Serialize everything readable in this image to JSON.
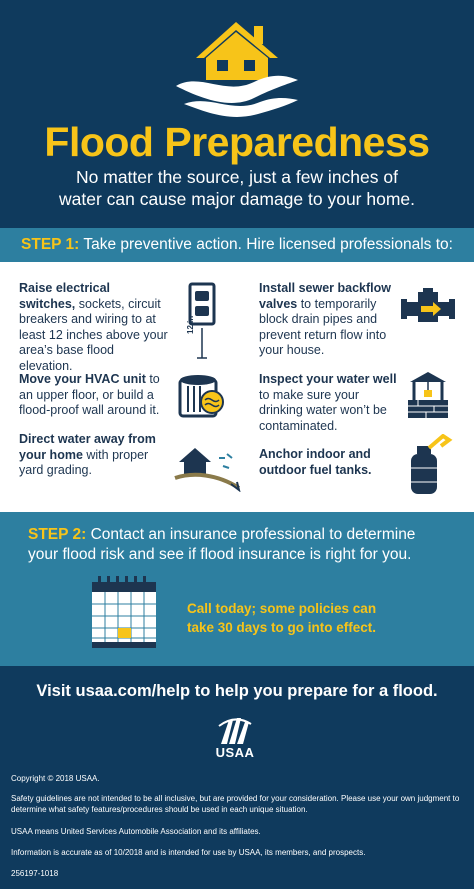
{
  "header": {
    "title": "Flood Preparedness",
    "subtitle_line1": "No matter the source, just a few inches of",
    "subtitle_line2": "water can cause major damage to your home."
  },
  "step1": {
    "label": "STEP 1:",
    "text": " Take preventive action. Hire licensed professionals to:"
  },
  "items": {
    "electrical": {
      "bold": "Raise electrical switches,",
      "rest": " sockets, circuit breakers and wiring to at least 12 inches above your area’s base flood elevation."
    },
    "electrical_icon_label": "12 in",
    "hvac": {
      "bold": "Move your HVAC unit",
      "rest": " to an upper floor, or build a flood-proof wall around it."
    },
    "water": {
      "bold": "Direct water away from your home",
      "rest": " with proper yard grading."
    },
    "sewer": {
      "bold": "Install sewer backflow valves",
      "rest": " to temporarily block drain pipes and prevent return flow into your house."
    },
    "well": {
      "bold": "Inspect your water well",
      "rest": " to make sure your drinking water won’t be contaminated."
    },
    "fuel": {
      "bold": "Anchor indoor and outdoor fuel tanks.",
      "rest": ""
    }
  },
  "step2": {
    "label": "STEP 2:",
    "text": " Contact an insurance professional to determine your flood risk and see if flood insurance is right for you.",
    "call_line1": "Call today; some policies can",
    "call_line2": "take 30 days to go into effect."
  },
  "footer": {
    "visit": "Visit usaa.com/help to help you prepare for a flood.",
    "brand": "USAA",
    "copyright": "Copyright © 2018 USAA.",
    "disclaimer": "Safety guidelines are not intended to be all inclusive, but are provided for your consideration. Please use your own judgment to determine what safety features/procedures should be used in each unique situation.",
    "usaa_means": "USAA means United Services Automobile Association and its affiliates.",
    "accuracy": "Information is accurate as of 10/2018 and is intended for use by USAA, its members, and prospects.",
    "code": "256197-1018"
  },
  "colors": {
    "navy": "#0f3a5d",
    "teal": "#2d7fa0",
    "yellow": "#f7c419",
    "text_dark": "#1d3550"
  }
}
